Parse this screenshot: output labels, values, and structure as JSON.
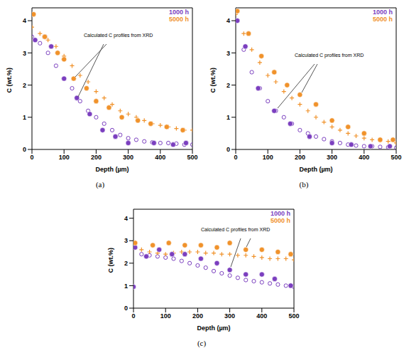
{
  "chart_data": [
    {
      "type": "scatter",
      "panel": "(a)",
      "x_label": "Depth (µm)",
      "y_label": "C (wt.%)",
      "annotation": "Calculated C profiles from XRD",
      "xlim": [
        0,
        500
      ],
      "xticks": [
        0,
        100,
        200,
        300,
        400,
        500
      ],
      "ylim": [
        0,
        4.4
      ],
      "yticks": [
        0,
        1,
        2,
        3,
        4
      ],
      "legend": "upper right",
      "series": [
        {
          "name": "1000 h",
          "color": "#7b3fbf",
          "marker": "circle",
          "x": [
            0,
            25,
            50,
            75,
            100,
            125,
            150,
            175,
            200,
            225,
            250,
            275,
            300,
            325,
            350,
            375,
            400,
            425,
            450,
            475,
            500
          ],
          "values": [
            3.5,
            3.3,
            3.0,
            2.6,
            2.2,
            1.9,
            1.5,
            1.2,
            1.0,
            0.8,
            0.6,
            0.45,
            0.35,
            0.3,
            0.25,
            0.22,
            0.2,
            0.2,
            0.18,
            0.15,
            0.15
          ],
          "xrd_x": [
            10,
            40,
            60,
            100,
            140,
            180,
            220,
            260,
            300,
            380,
            440,
            480
          ],
          "xrd_values": [
            3.4,
            3.5,
            3.2,
            2.2,
            1.6,
            1.1,
            0.6,
            0.4,
            0.2,
            0.2,
            0.15,
            0.2
          ]
        },
        {
          "name": "5000 h",
          "color": "#f0922b",
          "marker": "cross",
          "x": [
            0,
            25,
            50,
            75,
            100,
            125,
            150,
            175,
            200,
            225,
            250,
            275,
            300,
            325,
            350,
            375,
            400,
            425,
            450,
            475,
            500
          ],
          "values": [
            3.8,
            3.6,
            3.4,
            3.2,
            2.9,
            2.6,
            2.3,
            2.1,
            1.8,
            1.6,
            1.4,
            1.2,
            1.1,
            1.0,
            0.9,
            0.8,
            0.75,
            0.7,
            0.65,
            0.6,
            0.6
          ],
          "xrd_x": [
            5,
            40,
            80,
            100,
            130,
            170,
            200,
            240,
            280,
            330,
            370,
            420,
            470
          ],
          "xrd_values": [
            4.2,
            3.5,
            3.0,
            2.8,
            2.2,
            1.9,
            1.5,
            1.3,
            1.0,
            0.9,
            0.8,
            0.7,
            0.6
          ]
        }
      ]
    },
    {
      "type": "scatter",
      "panel": "(b)",
      "x_label": "Depth (µm)",
      "y_label": "C (wt.%)",
      "annotation": "Calculated C profiles from XRD",
      "xlim": [
        0,
        500
      ],
      "xticks": [
        0,
        100,
        200,
        300,
        400,
        500
      ],
      "ylim": [
        0,
        4.4
      ],
      "yticks": [
        0,
        1,
        2,
        3,
        4
      ],
      "legend": "upper right",
      "series": [
        {
          "name": "1000 h",
          "color": "#7b3fbf",
          "marker": "circle",
          "x": [
            0,
            25,
            50,
            75,
            100,
            125,
            150,
            175,
            200,
            225,
            250,
            275,
            300,
            325,
            350,
            375,
            400,
            425,
            450,
            475,
            500
          ],
          "values": [
            4.0,
            3.1,
            2.4,
            1.9,
            1.5,
            1.2,
            1.0,
            0.8,
            0.6,
            0.5,
            0.4,
            0.32,
            0.25,
            0.2,
            0.15,
            0.12,
            0.1,
            0.1,
            0.08,
            0.07,
            0.05
          ],
          "xrd_x": [
            5,
            30,
            70,
            120,
            170,
            230,
            300,
            360,
            420,
            480
          ],
          "xrd_values": [
            4.0,
            3.2,
            1.9,
            1.2,
            0.8,
            0.4,
            0.2,
            0.15,
            0.1,
            0.1
          ]
        },
        {
          "name": "5000 h",
          "color": "#f0922b",
          "marker": "cross",
          "x": [
            0,
            25,
            50,
            75,
            100,
            125,
            150,
            175,
            200,
            225,
            250,
            275,
            300,
            325,
            350,
            375,
            400,
            425,
            450,
            475,
            500
          ],
          "values": [
            4.2,
            3.6,
            3.1,
            2.7,
            2.3,
            2.1,
            1.8,
            1.6,
            1.4,
            1.2,
            1.0,
            0.85,
            0.7,
            0.6,
            0.5,
            0.42,
            0.35,
            0.3,
            0.28,
            0.25,
            0.2
          ],
          "xrd_x": [
            5,
            40,
            80,
            120,
            160,
            200,
            250,
            300,
            350,
            400,
            450,
            490
          ],
          "xrd_values": [
            4.3,
            3.6,
            2.9,
            2.4,
            2.0,
            1.7,
            1.4,
            0.9,
            0.7,
            0.5,
            0.3,
            0.3
          ]
        }
      ]
    },
    {
      "type": "scatter",
      "panel": "(c)",
      "x_label": "Depth (µm)",
      "y_label": "C (wt.%)",
      "annotation": "Calculated C profiles from XRD",
      "xlim": [
        0,
        500
      ],
      "xticks": [
        0,
        100,
        200,
        300,
        400,
        500
      ],
      "ylim": [
        0,
        4.4
      ],
      "yticks": [
        0,
        1,
        2,
        3,
        4
      ],
      "legend": "upper right",
      "series": [
        {
          "name": "1000 h",
          "color": "#7b3fbf",
          "marker": "circle",
          "x": [
            0,
            25,
            50,
            75,
            100,
            125,
            150,
            175,
            200,
            225,
            250,
            275,
            300,
            325,
            350,
            375,
            400,
            425,
            450,
            475,
            500
          ],
          "values": [
            2.7,
            2.4,
            2.35,
            2.3,
            2.25,
            2.2,
            2.1,
            2.0,
            1.9,
            1.8,
            1.65,
            1.55,
            1.45,
            1.35,
            1.25,
            1.2,
            1.15,
            1.1,
            1.05,
            1.0,
            0.95
          ],
          "xrd_x": [
            0,
            5,
            40,
            80,
            120,
            160,
            210,
            260,
            300,
            350,
            400,
            440,
            490
          ],
          "xrd_values": [
            0.95,
            2.7,
            2.3,
            2.6,
            2.4,
            2.4,
            2.2,
            2.0,
            1.7,
            1.5,
            1.5,
            1.3,
            1.0
          ]
        },
        {
          "name": "5000 h",
          "color": "#f0922b",
          "marker": "cross",
          "x": [
            0,
            25,
            50,
            75,
            100,
            125,
            150,
            175,
            200,
            225,
            250,
            275,
            300,
            325,
            350,
            375,
            400,
            425,
            450,
            475,
            500
          ],
          "values": [
            2.7,
            2.6,
            2.5,
            2.45,
            2.4,
            2.45,
            2.5,
            2.5,
            2.5,
            2.45,
            2.45,
            2.4,
            2.4,
            2.35,
            2.35,
            2.3,
            2.25,
            2.2,
            2.2,
            2.2,
            2.15
          ],
          "xrd_x": [
            5,
            60,
            110,
            160,
            210,
            260,
            300,
            350,
            400,
            450,
            490
          ],
          "xrd_values": [
            2.9,
            2.8,
            2.9,
            2.8,
            2.8,
            2.7,
            2.9,
            2.6,
            2.6,
            2.5,
            2.4
          ]
        }
      ]
    }
  ]
}
